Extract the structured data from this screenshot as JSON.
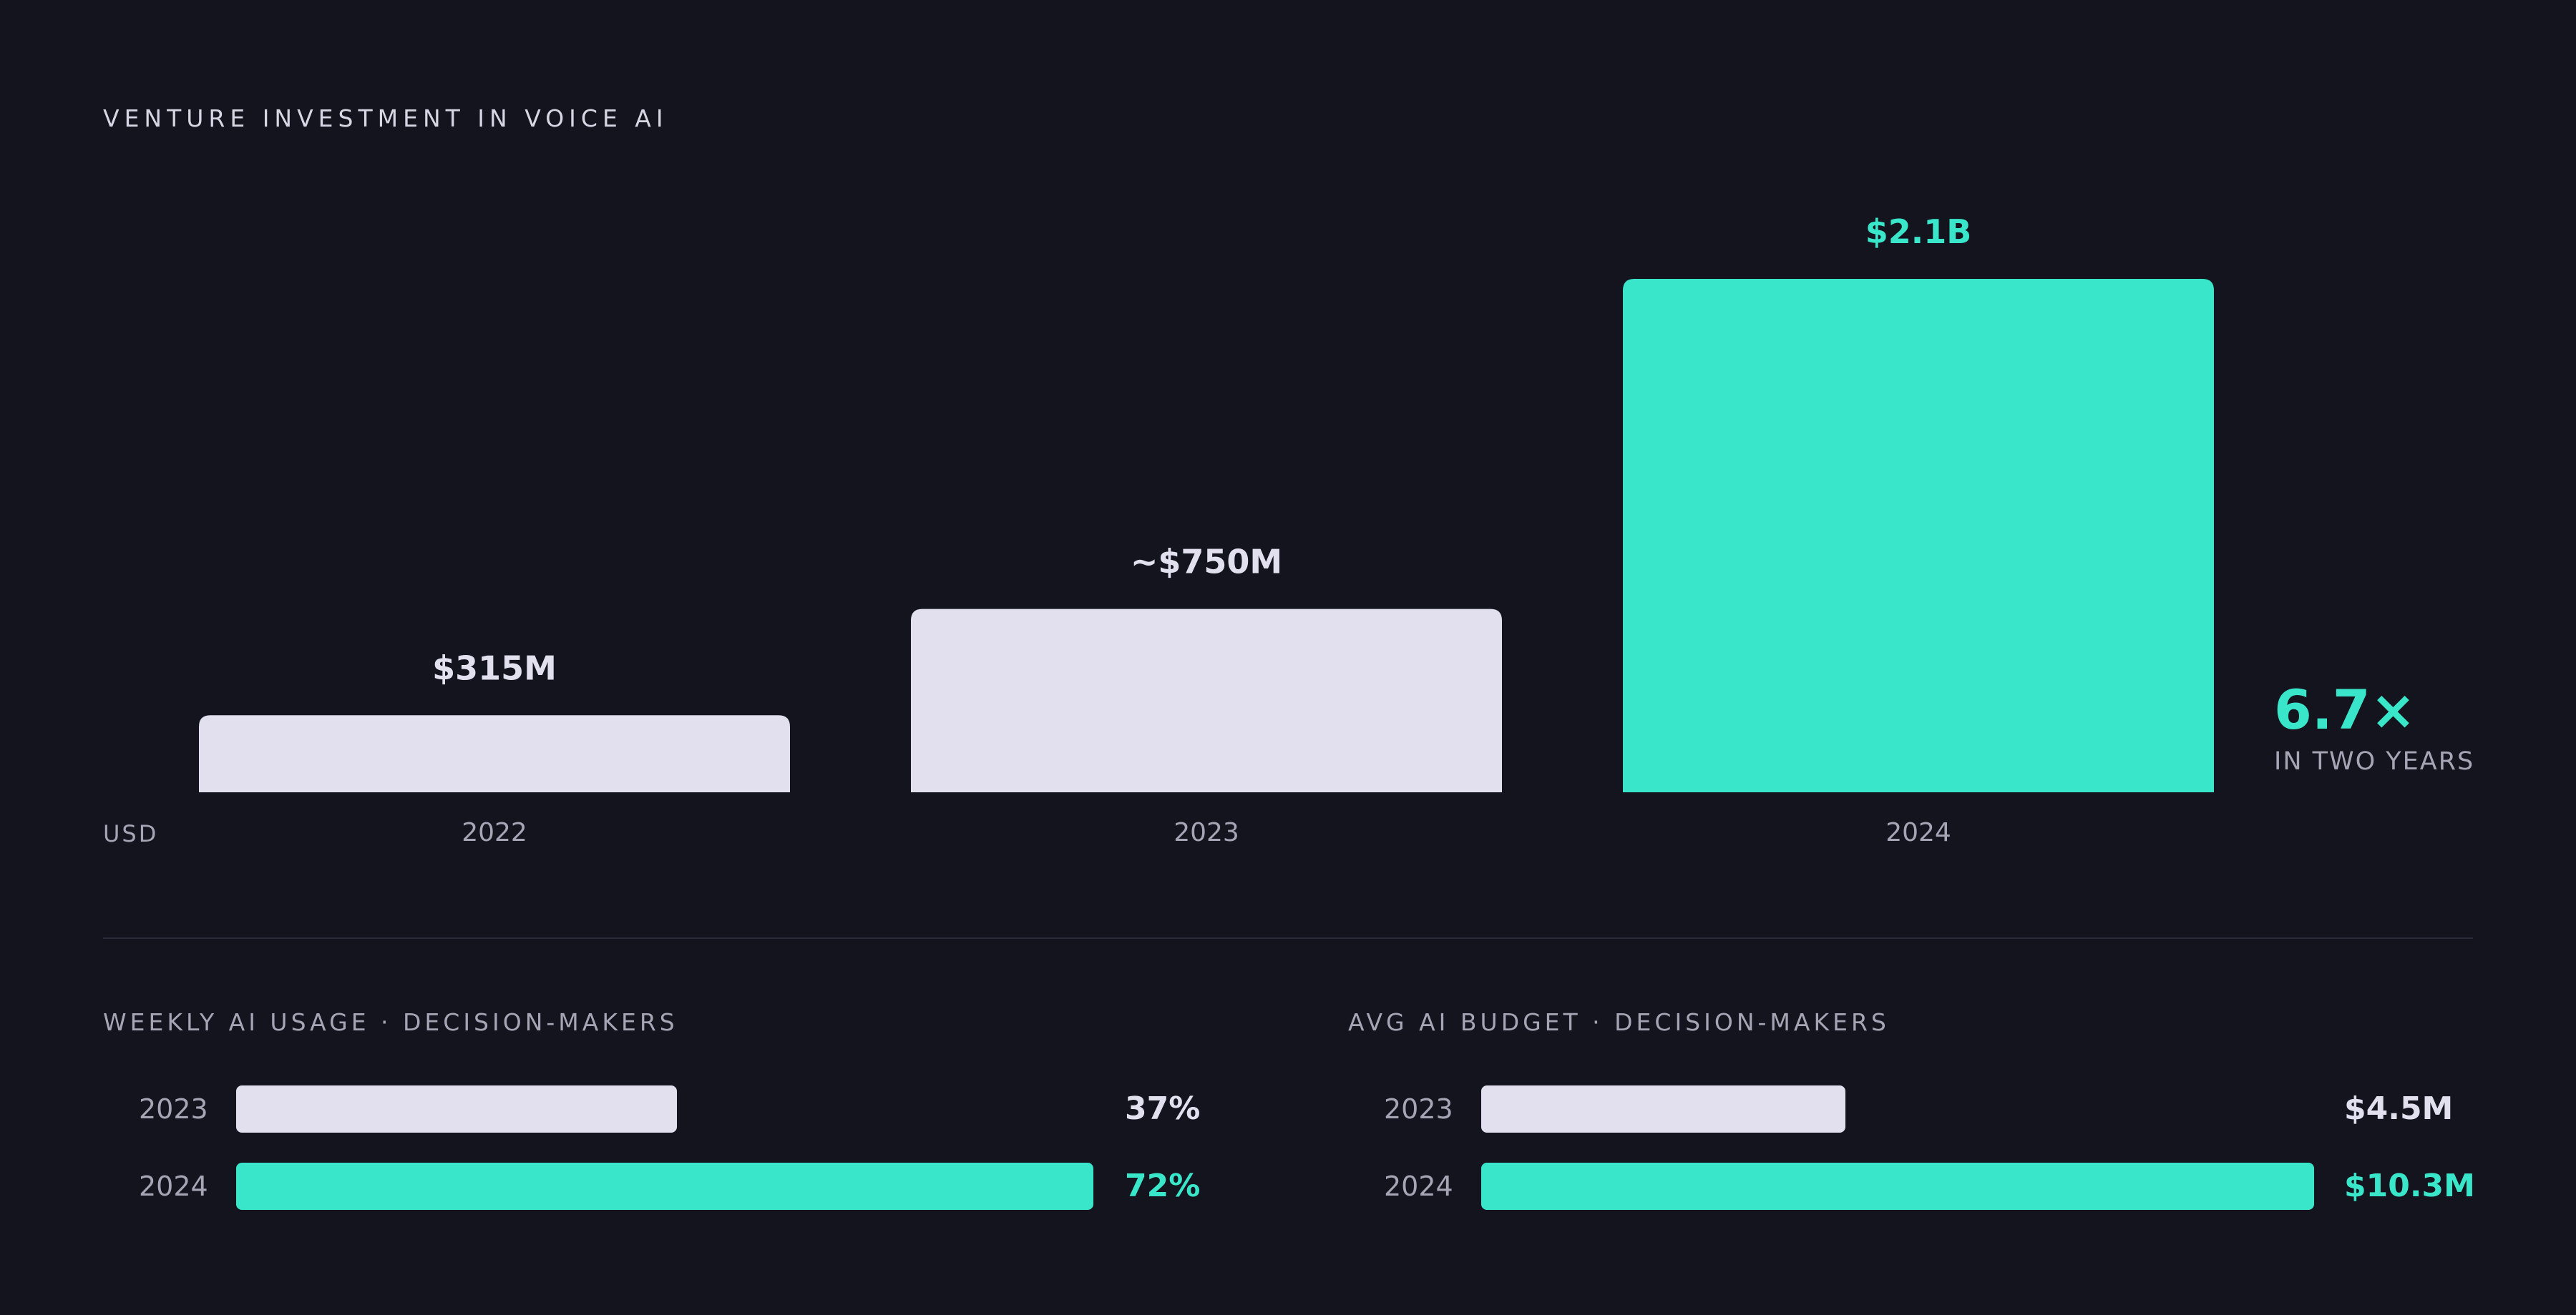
{
  "title": "VENTURE INVESTMENT IN VOICE AI",
  "colors": {
    "background": "#13141e",
    "neutral_bar": "#e2e0ef",
    "accent": "#3ae6c9",
    "muted_text": "#a7a5b5"
  },
  "chart_data": [
    {
      "type": "bar",
      "title": "VENTURE INVESTMENT IN VOICE AI",
      "ylabel": "USD",
      "categories": [
        "2022",
        "2023",
        "2024"
      ],
      "values": [
        315,
        750,
        2100
      ],
      "value_unit": "M USD",
      "value_labels": [
        "$315M",
        "~$750M",
        "$2.1B"
      ],
      "highlight_index": 2,
      "ylim": [
        0,
        2100
      ],
      "grid": false,
      "annotation": {
        "value": "6.7×",
        "label": "IN TWO YEARS"
      }
    },
    {
      "type": "bar",
      "orientation": "horizontal",
      "title": "WEEKLY AI USAGE · DECISION-MAKERS",
      "categories": [
        "2023",
        "2024"
      ],
      "values": [
        37,
        72
      ],
      "value_labels": [
        "37%",
        "72%"
      ],
      "xlim": [
        0,
        72
      ],
      "highlight_index": 1
    },
    {
      "type": "bar",
      "orientation": "horizontal",
      "title": "AVG AI BUDGET · DECISION-MAKERS",
      "categories": [
        "2023",
        "2024"
      ],
      "values": [
        4.5,
        10.3
      ],
      "value_labels": [
        "$4.5M",
        "$10.3M"
      ],
      "xlim": [
        0,
        10.3
      ],
      "highlight_index": 1
    }
  ]
}
